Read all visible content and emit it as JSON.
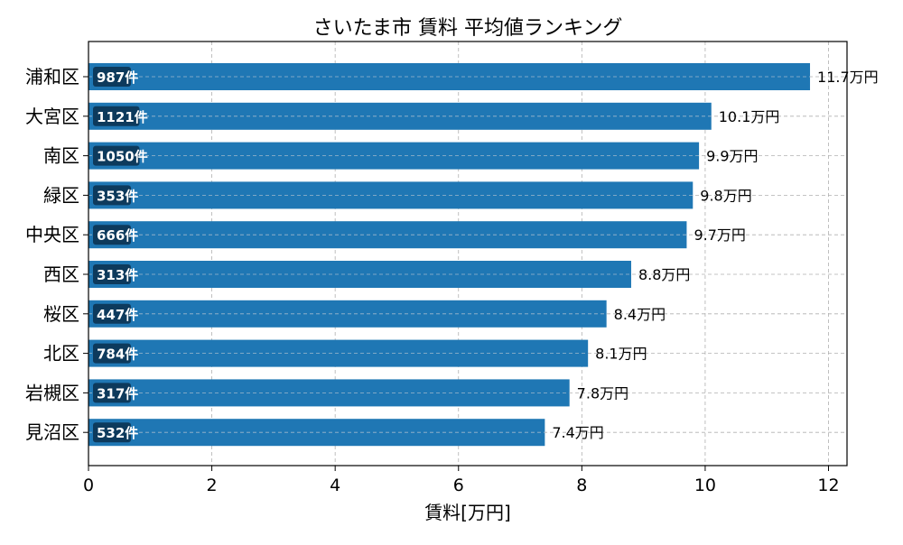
{
  "chart_data": {
    "type": "bar",
    "orientation": "horizontal",
    "title": "さいたま市 賃料 平均値ランキング",
    "xlabel": "賃料[万円]",
    "ylabel": "",
    "xlim": [
      0,
      12.3
    ],
    "xticks": [
      "0",
      "2",
      "4",
      "6",
      "8",
      "10",
      "12"
    ],
    "grid": true,
    "categories": [
      "浦和区",
      "大宮区",
      "南区",
      "緑区",
      "中央区",
      "西区",
      "桜区",
      "北区",
      "岩槻区",
      "見沼区"
    ],
    "values": [
      11.7,
      10.1,
      9.9,
      9.8,
      9.7,
      8.8,
      8.4,
      8.1,
      7.8,
      7.4
    ],
    "value_labels": [
      "11.7万円",
      "10.1万円",
      "9.9万円",
      "9.8万円",
      "9.7万円",
      "8.8万円",
      "8.4万円",
      "8.1万円",
      "7.8万円",
      "7.4万円"
    ],
    "count_labels": [
      "987件",
      "1121件",
      "1050件",
      "353件",
      "666件",
      "313件",
      "447件",
      "784件",
      "317件",
      "532件"
    ],
    "colors": {
      "bar": "#1f77b4",
      "badge": "#0d3a5c",
      "grid": "#b0b0b0"
    }
  }
}
